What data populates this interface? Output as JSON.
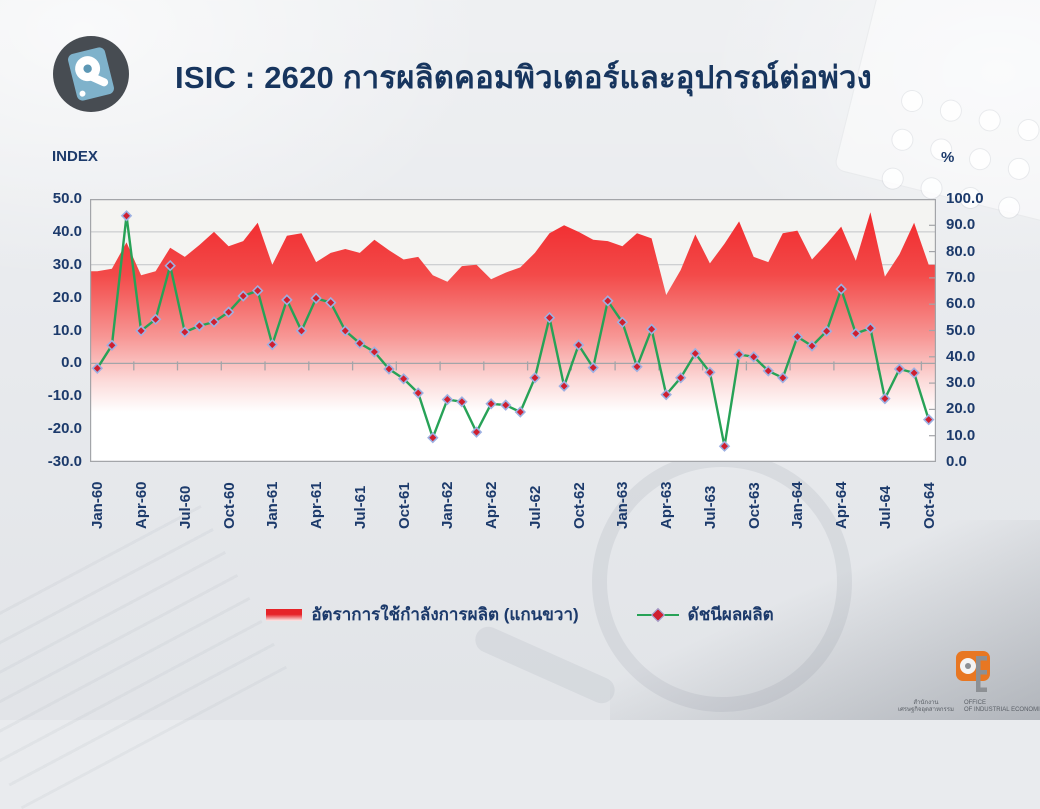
{
  "header": {
    "title": "ISIC : 2620 การผลิตคอมพิวเตอร์และอุปกรณ์ต่อพ่วง"
  },
  "chart": {
    "left_axis_title": "INDEX",
    "right_axis_title": "%",
    "left_ticks": [
      "50.0",
      "40.0",
      "30.0",
      "20.0",
      "10.0",
      "0.0",
      "-10.0",
      "-20.0",
      "-30.0"
    ],
    "right_ticks": [
      "100.0",
      "90.0",
      "80.0",
      "70.0",
      "60.0",
      "50.0",
      "40.0",
      "30.0",
      "20.0",
      "10.0",
      "0.0"
    ]
  },
  "chart_data": {
    "type": "area",
    "subtype": "combo: gradient area on right axis + line with diamond markers on left axis",
    "title": "ISIC : 2620 การผลิตคอมพิวเตอร์และอุปกรณ์ต่อพ่วง",
    "xlabel": "",
    "ylabel_left": "INDEX",
    "ylabel_right": "%",
    "left_axis": {
      "min": -30,
      "max": 50,
      "step": 10
    },
    "right_axis": {
      "min": 0,
      "max": 100,
      "step": 10
    },
    "grid": "horizontal only",
    "legend_position": "bottom-center",
    "x_label_every": 3,
    "categories": [
      "Jan-60",
      "Feb-60",
      "Mar-60",
      "Apr-60",
      "May-60",
      "Jun-60",
      "Jul-60",
      "Aug-60",
      "Sep-60",
      "Oct-60",
      "Nov-60",
      "Dec-60",
      "Jan-61",
      "Feb-61",
      "Mar-61",
      "Apr-61",
      "May-61",
      "Jun-61",
      "Jul-61",
      "Aug-61",
      "Sep-61",
      "Oct-61",
      "Nov-61",
      "Dec-61",
      "Jan-62",
      "Feb-62",
      "Mar-62",
      "Apr-62",
      "May-62",
      "Jun-62",
      "Jul-62",
      "Aug-62",
      "Sep-62",
      "Oct-62",
      "Nov-62",
      "Dec-62",
      "Jan-63",
      "Feb-63",
      "Mar-63",
      "Apr-63",
      "May-63",
      "Jun-63",
      "Jul-63",
      "Aug-63",
      "Sep-63",
      "Oct-63",
      "Nov-63",
      "Dec-63",
      "Jan-64",
      "Feb-64",
      "Mar-64",
      "Apr-64",
      "May-64",
      "Jun-64",
      "Jul-64",
      "Aug-64",
      "Sep-64",
      "Oct-64"
    ],
    "series": [
      {
        "name": "อัตราการใช้กำลังการผลิต (แกนขวา)",
        "type": "area",
        "axis": "right",
        "values": [
          72.5,
          73.5,
          83.5,
          71.0,
          72.5,
          81.5,
          78.0,
          82.5,
          87.5,
          82.0,
          84.0,
          91.0,
          75.0,
          86.0,
          87.0,
          76.0,
          79.5,
          81.0,
          79.5,
          84.5,
          80.5,
          77.0,
          78.0,
          71.0,
          68.5,
          74.5,
          75.0,
          69.5,
          72.0,
          74.0,
          79.5,
          87.0,
          90.0,
          87.5,
          84.5,
          84.0,
          82.0,
          87.0,
          85.0,
          63.5,
          73.0,
          86.5,
          75.5,
          83.0,
          91.5,
          78.0,
          76.0,
          87.0,
          88.0,
          77.0,
          83.0,
          89.5,
          76.5,
          95.0,
          70.5,
          79.0,
          91.0,
          75.0
        ]
      },
      {
        "name": "ดัชนีผลผลิต",
        "type": "line",
        "axis": "left",
        "marker": "diamond",
        "values": [
          -1.5,
          5.5,
          44.9,
          9.9,
          13.4,
          29.7,
          9.5,
          11.4,
          12.6,
          15.6,
          20.5,
          22.1,
          5.7,
          19.3,
          9.9,
          19.8,
          18.5,
          9.9,
          6.1,
          3.5,
          -1.7,
          -4.7,
          -9.0,
          -22.6,
          -11.0,
          -11.7,
          -20.9,
          -12.3,
          -12.7,
          -14.8,
          -4.4,
          13.9,
          -6.9,
          5.6,
          -1.3,
          19.0,
          12.5,
          -1.0,
          10.4,
          -9.5,
          -4.4,
          3.0,
          -2.7,
          -25.2,
          2.7,
          2.0,
          -2.3,
          -4.4,
          8.1,
          5.3,
          9.8,
          22.6,
          9.1,
          10.7,
          -10.7,
          -1.7,
          -2.9,
          -17.1
        ]
      }
    ]
  },
  "legend": {
    "items": [
      {
        "label": "อัตราการใช้กำลังการผลิต (แกนขวา)",
        "swatch": "red-gradient-area"
      },
      {
        "label": "ดัชนีผลผลิต",
        "swatch": "green-line-red-diamond"
      }
    ]
  },
  "footer": {
    "org_thai_line1": "สำนักงาน",
    "org_thai_line2": "เศรษฐกิจอุตสาหกรรม",
    "org_en_line1": "OFFICE",
    "org_en_line2": "OF INDUSTRIAL ECONOMICS"
  },
  "colors": {
    "title_navy": "#17355e",
    "axis_navy": "#1c3a6b",
    "area_red_top": "#f1292d",
    "line_green": "#27a257",
    "marker_red": "#cf1f2f",
    "marker_stroke": "#9db0e2",
    "gridline": "#c2c4c7",
    "axis_line": "#a3a5a9",
    "plot_bg": "#f4f4f2",
    "logo_orange": "#e87722"
  }
}
